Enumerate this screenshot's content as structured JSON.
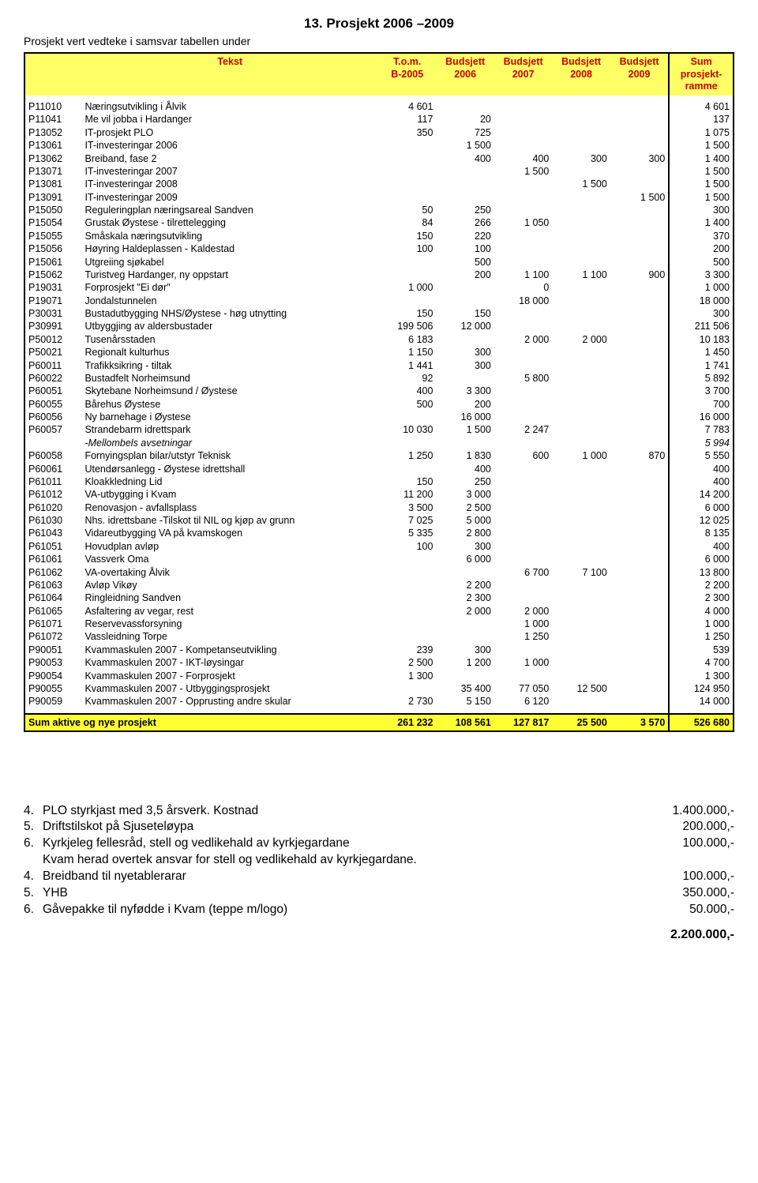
{
  "title": "13. Prosjekt 2006 –2009",
  "subtitle": "Prosjekt vert vedteke i samsvar tabellen under",
  "headers": {
    "tekst": "Tekst",
    "tom1": "T.o.m.",
    "tom2": "B-2005",
    "b1a": "Budsjett",
    "b1b": "2006",
    "b2a": "Budsjett",
    "b2b": "2007",
    "b3a": "Budsjett",
    "b3b": "2008",
    "b4a": "Budsjett",
    "b4b": "2009",
    "suma": "Sum",
    "sumb": "prosjekt-",
    "sumc": "ramme"
  },
  "rows": [
    {
      "c": "P11010",
      "d": "Næringsutvikling i Ålvik",
      "v": [
        "4 601",
        "",
        "",
        "",
        "",
        "4 601"
      ]
    },
    {
      "c": "P11041",
      "d": "Me vil jobba i Hardanger",
      "v": [
        "117",
        "20",
        "",
        "",
        "",
        "137"
      ]
    },
    {
      "c": "P13052",
      "d": "IT-prosjekt PLO",
      "v": [
        "350",
        "725",
        "",
        "",
        "",
        "1 075"
      ]
    },
    {
      "c": "P13061",
      "d": "IT-investeringar 2006",
      "v": [
        "",
        "1 500",
        "",
        "",
        "",
        "1 500"
      ]
    },
    {
      "c": "P13062",
      "d": "Breiband, fase 2",
      "v": [
        "",
        "400",
        "400",
        "300",
        "300",
        "1 400"
      ]
    },
    {
      "c": "P13071",
      "d": "IT-investeringar 2007",
      "v": [
        "",
        "",
        "1 500",
        "",
        "",
        "1 500"
      ]
    },
    {
      "c": "P13081",
      "d": "IT-investeringar 2008",
      "v": [
        "",
        "",
        "",
        "1 500",
        "",
        "1 500"
      ]
    },
    {
      "c": "P13091",
      "d": "IT-investeringar 2009",
      "v": [
        "",
        "",
        "",
        "",
        "1 500",
        "1 500"
      ]
    },
    {
      "c": "P15050",
      "d": "Reguleringplan næringsareal Sandven",
      "v": [
        "50",
        "250",
        "",
        "",
        "",
        "300"
      ]
    },
    {
      "c": "P15054",
      "d": "Grustak Øystese - tilrettelegging",
      "v": [
        "84",
        "266",
        "1 050",
        "",
        "",
        "1 400"
      ]
    },
    {
      "c": "P15055",
      "d": "Småskala næringsutvikling",
      "v": [
        "150",
        "220",
        "",
        "",
        "",
        "370"
      ]
    },
    {
      "c": "P15056",
      "d": "Høyring Haldeplassen - Kaldestad",
      "v": [
        "100",
        "100",
        "",
        "",
        "",
        "200"
      ]
    },
    {
      "c": "P15061",
      "d": "Utgreiing sjøkabel",
      "v": [
        "",
        "500",
        "",
        "",
        "",
        "500"
      ]
    },
    {
      "c": "P15062",
      "d": "Turistveg Hardanger, ny oppstart",
      "v": [
        "",
        "200",
        "1 100",
        "1 100",
        "900",
        "3 300"
      ]
    },
    {
      "c": "P19031",
      "d": "Forprosjekt \"Ei dør\"",
      "v": [
        "1 000",
        "",
        "0",
        "",
        "",
        "1 000"
      ]
    },
    {
      "c": "P19071",
      "d": "Jondalstunnelen",
      "v": [
        "",
        "",
        "18 000",
        "",
        "",
        "18 000"
      ]
    },
    {
      "c": "P30031",
      "d": "Bustadutbygging NHS/Øystese - høg utnytting",
      "v": [
        "150",
        "150",
        "",
        "",
        "",
        "300"
      ]
    },
    {
      "c": "P30991",
      "d": "Utbyggjing av aldersbustader",
      "v": [
        "199 506",
        "12 000",
        "",
        "",
        "",
        "211 506"
      ]
    },
    {
      "c": "P50012",
      "d": "Tusenårsstaden",
      "v": [
        "6 183",
        "",
        "2 000",
        "2 000",
        "",
        "10 183"
      ]
    },
    {
      "c": "P50021",
      "d": "Regionalt kulturhus",
      "v": [
        "1 150",
        "300",
        "",
        "",
        "",
        "1 450"
      ]
    },
    {
      "c": "P60011",
      "d": "Trafikksikring - tiltak",
      "v": [
        "1 441",
        "300",
        "",
        "",
        "",
        "1 741"
      ]
    },
    {
      "c": "P60022",
      "d": "Bustadfelt Norheimsund",
      "v": [
        "92",
        "",
        "5 800",
        "",
        "",
        "5 892"
      ]
    },
    {
      "c": "P60051",
      "d": "Skytebane Norheimsund / Øystese",
      "v": [
        "400",
        "3 300",
        "",
        "",
        "",
        "3 700"
      ]
    },
    {
      "c": "P60055",
      "d": "Bårehus Øystese",
      "v": [
        "500",
        "200",
        "",
        "",
        "",
        "700"
      ]
    },
    {
      "c": "P60056",
      "d": "Ny barnehage i Øystese",
      "v": [
        "",
        "16 000",
        "",
        "",
        "",
        "16 000"
      ]
    },
    {
      "c": "P60057",
      "d": "Strandebarm idrettspark",
      "v": [
        "10 030",
        "1 500",
        "2 247",
        "",
        "",
        "7 783"
      ]
    },
    {
      "c": "",
      "d": "-Mellombels avsetningar",
      "v": [
        "",
        "",
        "",
        "",
        "",
        "5 994"
      ],
      "italic": true
    },
    {
      "c": "P60058",
      "d": "Fornyingsplan bilar/utstyr Teknisk",
      "v": [
        "1 250",
        "1 830",
        "600",
        "1 000",
        "870",
        "5 550"
      ]
    },
    {
      "c": "P60061",
      "d": "Utendørsanlegg - Øystese idrettshall",
      "v": [
        "",
        "400",
        "",
        "",
        "",
        "400"
      ]
    },
    {
      "c": "P61011",
      "d": "Kloakkledning Lid",
      "v": [
        "150",
        "250",
        "",
        "",
        "",
        "400"
      ]
    },
    {
      "c": "P61012",
      "d": "VA-utbygging i Kvam",
      "v": [
        "11 200",
        "3 000",
        "",
        "",
        "",
        "14 200"
      ]
    },
    {
      "c": "P61020",
      "d": "Renovasjon - avfallsplass",
      "v": [
        "3 500",
        "2 500",
        "",
        "",
        "",
        "6 000"
      ]
    },
    {
      "c": "P61030",
      "d": "Nhs. idrettsbane -Tilskot til NIL og kjøp av grunn",
      "v": [
        "7 025",
        "5 000",
        "",
        "",
        "",
        "12 025"
      ]
    },
    {
      "c": "P61043",
      "d": "Vidareutbygging VA på kvamskogen",
      "v": [
        "5 335",
        "2 800",
        "",
        "",
        "",
        "8 135"
      ]
    },
    {
      "c": "P61051",
      "d": "Hovudplan avløp",
      "v": [
        "100",
        "300",
        "",
        "",
        "",
        "400"
      ]
    },
    {
      "c": "P61061",
      "d": "Vassverk Oma",
      "v": [
        "",
        "6 000",
        "",
        "",
        "",
        "6 000"
      ]
    },
    {
      "c": "P61062",
      "d": "VA-overtaking Ålvik",
      "v": [
        "",
        "",
        "6 700",
        "7 100",
        "",
        "13 800"
      ]
    },
    {
      "c": "P61063",
      "d": "Avløp Vikøy",
      "v": [
        "",
        "2 200",
        "",
        "",
        "",
        "2 200"
      ]
    },
    {
      "c": "P61064",
      "d": "Ringleidning Sandven",
      "v": [
        "",
        "2 300",
        "",
        "",
        "",
        "2 300"
      ]
    },
    {
      "c": "P61065",
      "d": "Asfaltering av vegar, rest",
      "v": [
        "",
        "2 000",
        "2 000",
        "",
        "",
        "4 000"
      ]
    },
    {
      "c": "P61071",
      "d": "Reservevassforsyning",
      "v": [
        "",
        "",
        "1 000",
        "",
        "",
        "1 000"
      ]
    },
    {
      "c": "P61072",
      "d": "Vassleidning Torpe",
      "v": [
        "",
        "",
        "1 250",
        "",
        "",
        "1 250"
      ]
    },
    {
      "c": "P90051",
      "d": "Kvammaskulen 2007 - Kompetanseutvikling",
      "v": [
        "239",
        "300",
        "",
        "",
        "",
        "539"
      ]
    },
    {
      "c": "P90053",
      "d": "Kvammaskulen 2007 - IKT-løysingar",
      "v": [
        "2 500",
        "1 200",
        "1 000",
        "",
        "",
        "4 700"
      ]
    },
    {
      "c": "P90054",
      "d": "Kvammaskulen 2007 - Forprosjekt",
      "v": [
        "1 300",
        "",
        "",
        "",
        "",
        "1 300"
      ]
    },
    {
      "c": "P90055",
      "d": "Kvammaskulen 2007 - Utbyggingsprosjekt",
      "v": [
        "",
        "35 400",
        "77 050",
        "12 500",
        "",
        "124 950"
      ]
    },
    {
      "c": "P90059",
      "d": "Kvammaskulen 2007 - Opprusting andre skular",
      "v": [
        "2 730",
        "5 150",
        "6 120",
        "",
        "",
        "14 000"
      ]
    }
  ],
  "sum": {
    "label": "Sum aktive og nye prosjekt",
    "v": [
      "261 232",
      "108 561",
      "127 817",
      "25 500",
      "3 570",
      "526 680"
    ]
  },
  "bottom": {
    "items": [
      {
        "n": "4.",
        "t": "PLO styrkjast med 3,5 årsverk. Kostnad",
        "a": "1.400.000,-"
      },
      {
        "n": "5.",
        "t": "Driftstilskot på Sjuseteløypa",
        "a": "200.000,-"
      },
      {
        "n": "6.",
        "t": "Kyrkjeleg fellesråd, stell og vedlikehald av kyrkjegardane",
        "a": "100.000,-"
      },
      {
        "n": "",
        "t": "Kvam herad overtek ansvar for stell og vedlikehald av kyrkjegardane.",
        "a": ""
      },
      {
        "n": "4.",
        "t": "Breidband til nyetablerarar",
        "a": "100.000,-"
      },
      {
        "n": "5.",
        "t": "YHB",
        "a": "350.000,-"
      },
      {
        "n": "6.",
        "t": "Gåvepakke til nyfødde i Kvam (teppe m/logo)",
        "a": "50.000,-"
      }
    ],
    "grand": "2.200.000,-"
  }
}
